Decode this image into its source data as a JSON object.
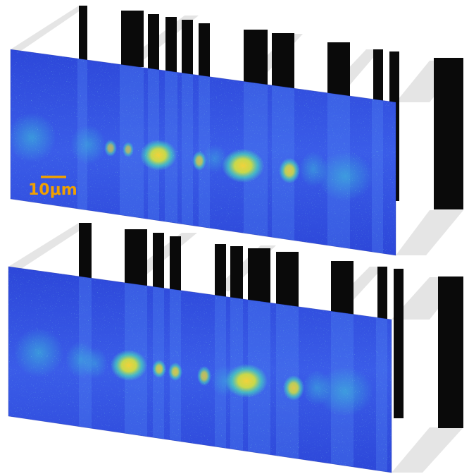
{
  "scale_bar": {
    "label": "10μm",
    "color": "#f0a000"
  },
  "colors": {
    "background": "#ffffff",
    "bar_black": "#0a0a0a",
    "wall_grey": "#d9d9d9",
    "wall_light": "#efefef",
    "image_base": "#2848e0",
    "spot_core": "#f2d23a",
    "spot_mid": "#46d6b4"
  },
  "panels": [
    {
      "id": "top-panel"
    },
    {
      "id": "bottom-panel"
    }
  ]
}
